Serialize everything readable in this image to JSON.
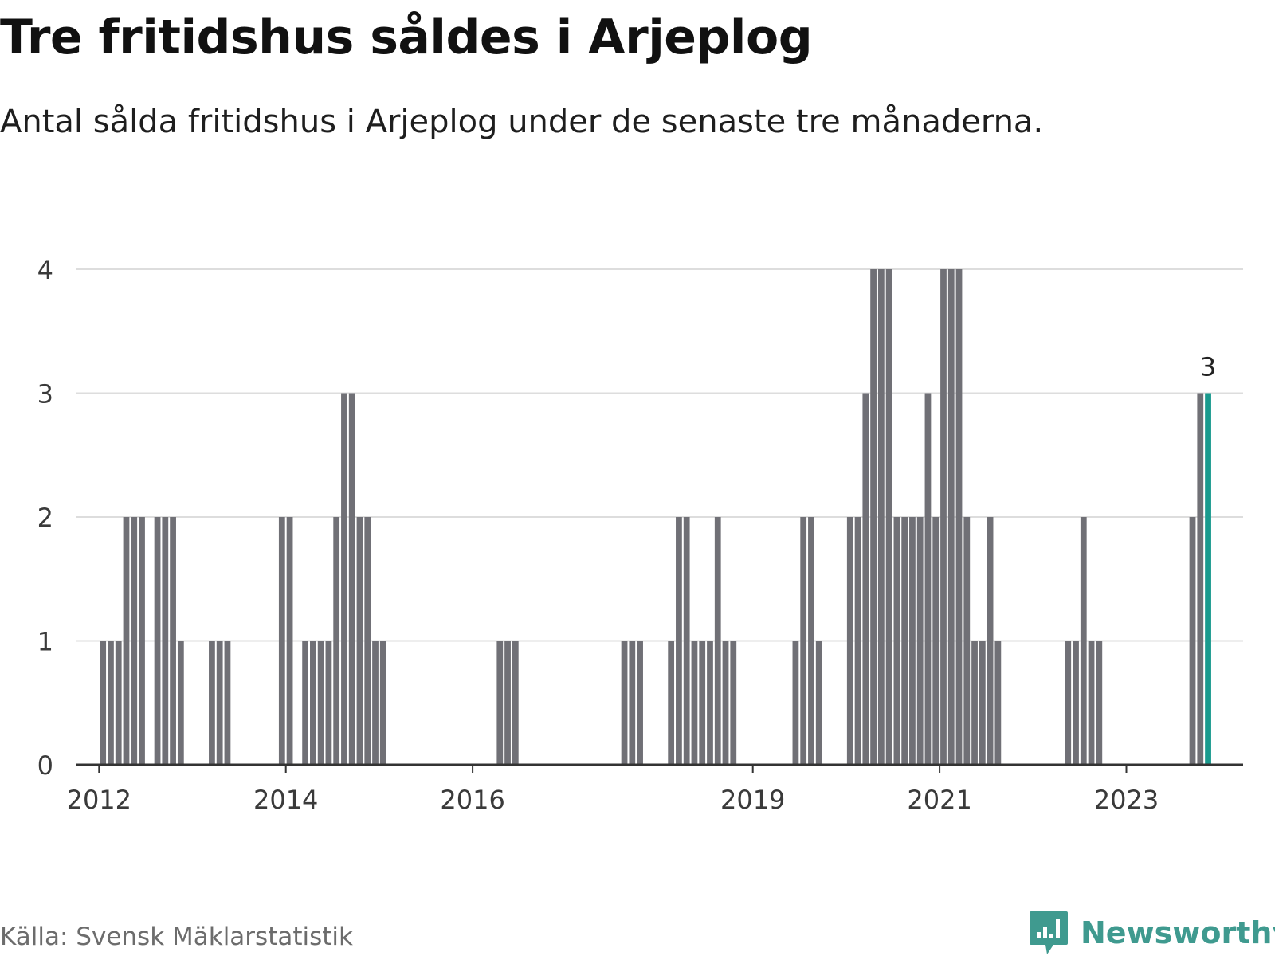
{
  "title": "Tre fritidshus såldes i Arjeplog",
  "subtitle": "Antal sålda fritidshus i Arjeplog under de senaste tre månaderna.",
  "source": "Källa: Svensk Mäklarstatistik",
  "brand": {
    "name": "Newsworthy",
    "icon": "newsworthy-logo-icon",
    "color": "#3f9a8f"
  },
  "colors": {
    "bar": "#707076",
    "highlight": "#1a9a8e",
    "grid": "#dddddd",
    "axis": "#333333"
  },
  "chart_data": {
    "type": "bar",
    "x_unit": "month",
    "x_start": "2011-10",
    "x_end": "2024-04",
    "xticks": [
      "2012",
      "2014",
      "2016",
      "2019",
      "2021",
      "2023"
    ],
    "ylim": [
      0,
      4
    ],
    "yticks": [
      0,
      1,
      2,
      3,
      4
    ],
    "grid": true,
    "highlight_last": true,
    "last_value_label": "3",
    "bars": [
      {
        "month": "2012-01",
        "value": 1
      },
      {
        "month": "2012-02",
        "value": 1
      },
      {
        "month": "2012-03",
        "value": 1
      },
      {
        "month": "2012-04",
        "value": 2
      },
      {
        "month": "2012-05",
        "value": 2
      },
      {
        "month": "2012-06",
        "value": 2
      },
      {
        "month": "2012-08",
        "value": 2
      },
      {
        "month": "2012-09",
        "value": 2
      },
      {
        "month": "2012-10",
        "value": 2
      },
      {
        "month": "2012-11",
        "value": 1
      },
      {
        "month": "2013-03",
        "value": 1
      },
      {
        "month": "2013-04",
        "value": 1
      },
      {
        "month": "2013-05",
        "value": 1
      },
      {
        "month": "2013-12",
        "value": 2
      },
      {
        "month": "2014-01",
        "value": 2
      },
      {
        "month": "2014-03",
        "value": 1
      },
      {
        "month": "2014-04",
        "value": 1
      },
      {
        "month": "2014-05",
        "value": 1
      },
      {
        "month": "2014-06",
        "value": 1
      },
      {
        "month": "2014-07",
        "value": 2
      },
      {
        "month": "2014-08",
        "value": 3
      },
      {
        "month": "2014-09",
        "value": 3
      },
      {
        "month": "2014-10",
        "value": 2
      },
      {
        "month": "2014-11",
        "value": 2
      },
      {
        "month": "2014-12",
        "value": 1
      },
      {
        "month": "2015-01",
        "value": 1
      },
      {
        "month": "2016-04",
        "value": 1
      },
      {
        "month": "2016-05",
        "value": 1
      },
      {
        "month": "2016-06",
        "value": 1
      },
      {
        "month": "2017-08",
        "value": 1
      },
      {
        "month": "2017-09",
        "value": 1
      },
      {
        "month": "2017-10",
        "value": 1
      },
      {
        "month": "2018-02",
        "value": 1
      },
      {
        "month": "2018-03",
        "value": 2
      },
      {
        "month": "2018-04",
        "value": 2
      },
      {
        "month": "2018-05",
        "value": 1
      },
      {
        "month": "2018-06",
        "value": 1
      },
      {
        "month": "2018-07",
        "value": 1
      },
      {
        "month": "2018-08",
        "value": 2
      },
      {
        "month": "2018-09",
        "value": 1
      },
      {
        "month": "2018-10",
        "value": 1
      },
      {
        "month": "2019-06",
        "value": 1
      },
      {
        "month": "2019-07",
        "value": 2
      },
      {
        "month": "2019-08",
        "value": 2
      },
      {
        "month": "2019-09",
        "value": 1
      },
      {
        "month": "2020-01",
        "value": 2
      },
      {
        "month": "2020-02",
        "value": 2
      },
      {
        "month": "2020-03",
        "value": 3
      },
      {
        "month": "2020-04",
        "value": 4
      },
      {
        "month": "2020-05",
        "value": 4
      },
      {
        "month": "2020-06",
        "value": 4
      },
      {
        "month": "2020-07",
        "value": 2
      },
      {
        "month": "2020-08",
        "value": 2
      },
      {
        "month": "2020-09",
        "value": 2
      },
      {
        "month": "2020-10",
        "value": 2
      },
      {
        "month": "2020-11",
        "value": 3
      },
      {
        "month": "2020-12",
        "value": 2
      },
      {
        "month": "2021-01",
        "value": 4
      },
      {
        "month": "2021-02",
        "value": 4
      },
      {
        "month": "2021-03",
        "value": 4
      },
      {
        "month": "2021-04",
        "value": 2
      },
      {
        "month": "2021-05",
        "value": 1
      },
      {
        "month": "2021-06",
        "value": 1
      },
      {
        "month": "2021-07",
        "value": 2
      },
      {
        "month": "2021-08",
        "value": 1
      },
      {
        "month": "2022-05",
        "value": 1
      },
      {
        "month": "2022-06",
        "value": 1
      },
      {
        "month": "2022-07",
        "value": 2
      },
      {
        "month": "2022-08",
        "value": 1
      },
      {
        "month": "2022-09",
        "value": 1
      },
      {
        "month": "2023-09",
        "value": 2
      },
      {
        "month": "2023-10",
        "value": 3
      },
      {
        "month": "2023-11",
        "value": 3
      }
    ]
  }
}
